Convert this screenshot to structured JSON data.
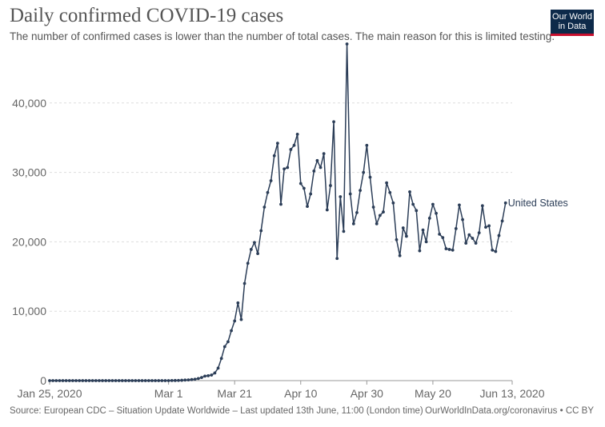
{
  "header": {
    "title": "Daily confirmed COVID-19 cases",
    "subtitle": "The number of confirmed cases is lower than the number of total cases. The main reason for this is limited testing.",
    "logo_line1": "Our World",
    "logo_line2": "in Data"
  },
  "footer": {
    "source": "Source: European CDC – Situation Update Worldwide – Last updated 13th June, 11:00 (London time)",
    "link": "OurWorldInData.org/coronavirus • CC BY"
  },
  "colors": {
    "series": "#2c3e58",
    "grid": "#dddddd",
    "axis_text": "#666666",
    "logo_bg": "#0d2a4a",
    "logo_accent": "#c8102e"
  },
  "chart_data": {
    "type": "line",
    "title": "Daily confirmed COVID-19 cases",
    "x_start": "2020-01-25",
    "x_end": "2020-06-13",
    "x_tick_labels": [
      "Jan 25, 2020",
      "Mar 1",
      "Mar 21",
      "Apr 10",
      "Apr 30",
      "May 20",
      "Jun 13, 2020"
    ],
    "x_tick_dates": [
      "2020-01-25",
      "2020-03-01",
      "2020-03-21",
      "2020-04-10",
      "2020-04-30",
      "2020-05-20",
      "2020-06-13"
    ],
    "ylim": [
      0,
      48500
    ],
    "y_ticks": [
      0,
      10000,
      20000,
      30000,
      40000
    ],
    "y_tick_labels": [
      "0",
      "10,000",
      "20,000",
      "30,000",
      "40,000"
    ],
    "grid": true,
    "series": [
      {
        "name": "United States",
        "label_position": "end",
        "values": [
          0,
          0,
          0,
          0,
          0,
          0,
          0,
          0,
          0,
          0,
          0,
          0,
          0,
          0,
          0,
          0,
          0,
          0,
          0,
          0,
          0,
          0,
          0,
          0,
          0,
          0,
          0,
          0,
          0,
          0,
          0,
          0,
          0,
          0,
          0,
          0,
          3,
          10,
          20,
          30,
          50,
          80,
          100,
          150,
          200,
          300,
          450,
          650,
          700,
          800,
          1100,
          1800,
          3200,
          4900,
          5600,
          7200,
          8600,
          11200,
          8800,
          14000,
          16900,
          18900,
          19900,
          18300,
          21600,
          25000,
          27100,
          28800,
          32400,
          34200,
          25400,
          30500,
          30700,
          33300,
          33900,
          35500,
          28400,
          27700,
          25100,
          26900,
          30200,
          31700,
          30700,
          32700,
          24600,
          28100,
          37300,
          17600,
          26500,
          21500,
          48500,
          26900,
          22600,
          24200,
          27400,
          30000,
          33900,
          29300,
          25000,
          22600,
          23800,
          24300,
          28500,
          27100,
          25600,
          20300,
          18000,
          22000,
          20800,
          27200,
          25400,
          24500,
          18700,
          21700,
          20000,
          23400,
          25400,
          24100,
          21100,
          20600,
          19000,
          18900,
          18800,
          21900,
          25300,
          23200,
          19800,
          21000,
          20500,
          19800,
          21300,
          25200,
          22100,
          22300,
          18800,
          18600,
          20900,
          23000,
          25600
        ]
      }
    ]
  }
}
